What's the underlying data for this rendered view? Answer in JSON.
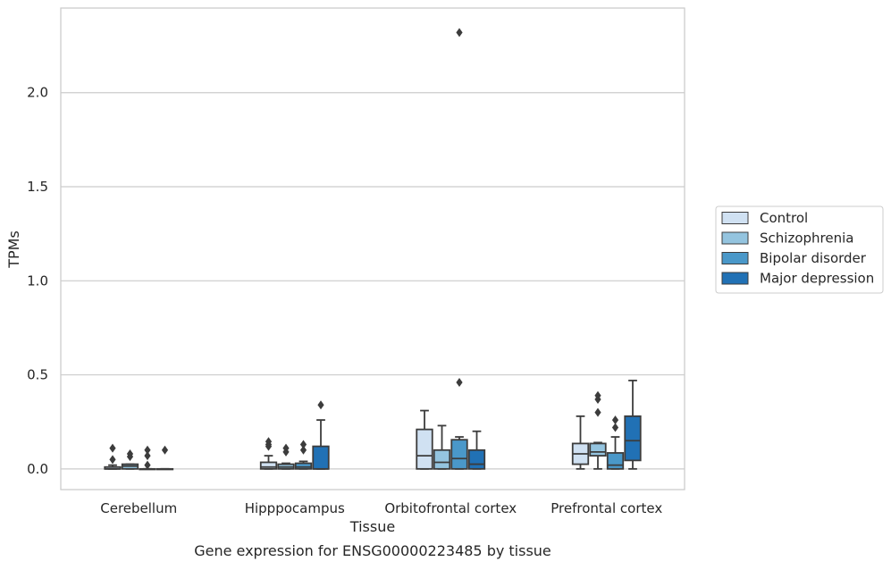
{
  "chart_data": {
    "type": "box",
    "caption": "Gene expression for ENSG00000223485 by tissue",
    "xlabel": "Tissue",
    "ylabel": "TPMs",
    "ylim": [
      -0.11,
      2.45
    ],
    "yticks": [
      0.0,
      0.5,
      1.0,
      1.5,
      2.0
    ],
    "ytick_labels": [
      "0.0",
      "0.5",
      "1.0",
      "1.5",
      "2.0"
    ],
    "grid": "horizontal",
    "legend_position": "right",
    "categories": [
      "Cerebellum",
      "Hipppocampus",
      "Orbitofrontal cortex",
      "Prefrontal cortex"
    ],
    "series": [
      {
        "name": "Control",
        "color": "#d0e1f2",
        "boxes": [
          {
            "q1": 0.0,
            "median": 0.0,
            "q3": 0.01,
            "whisker_low": 0.0,
            "whisker_high": 0.02,
            "outliers": [
              0.05,
              0.11
            ]
          },
          {
            "q1": 0.0,
            "median": 0.01,
            "q3": 0.035,
            "whisker_low": 0.0,
            "whisker_high": 0.07,
            "outliers": [
              0.12,
              0.13,
              0.145
            ]
          },
          {
            "q1": 0.0,
            "median": 0.07,
            "q3": 0.21,
            "whisker_low": 0.0,
            "whisker_high": 0.31,
            "outliers": []
          },
          {
            "q1": 0.025,
            "median": 0.08,
            "q3": 0.135,
            "whisker_low": 0.0,
            "whisker_high": 0.28,
            "outliers": []
          }
        ]
      },
      {
        "name": "Schizophrenia",
        "color": "#94c4df",
        "boxes": [
          {
            "q1": 0.0,
            "median": 0.015,
            "q3": 0.025,
            "whisker_low": 0.0,
            "whisker_high": 0.025,
            "outliers": [
              0.065,
              0.08
            ]
          },
          {
            "q1": 0.0,
            "median": 0.01,
            "q3": 0.025,
            "whisker_low": 0.0,
            "whisker_high": 0.03,
            "outliers": [
              0.09,
              0.11
            ]
          },
          {
            "q1": 0.0,
            "median": 0.035,
            "q3": 0.1,
            "whisker_low": 0.0,
            "whisker_high": 0.23,
            "outliers": []
          },
          {
            "q1": 0.07,
            "median": 0.09,
            "q3": 0.135,
            "whisker_low": 0.0,
            "whisker_high": 0.14,
            "outliers": [
              0.3,
              0.37,
              0.39
            ]
          }
        ]
      },
      {
        "name": "Bipolar disorder",
        "color": "#4a98c9",
        "boxes": [
          {
            "q1": 0.0,
            "median": 0.0,
            "q3": 0.0,
            "whisker_low": 0.0,
            "whisker_high": 0.0,
            "outliers": [
              0.02,
              0.07,
              0.1
            ]
          },
          {
            "q1": 0.0,
            "median": 0.01,
            "q3": 0.03,
            "whisker_low": 0.0,
            "whisker_high": 0.04,
            "outliers": [
              0.1,
              0.13
            ]
          },
          {
            "q1": 0.0,
            "median": 0.055,
            "q3": 0.155,
            "whisker_low": 0.0,
            "whisker_high": 0.17,
            "outliers": [
              0.46,
              2.32
            ]
          },
          {
            "q1": 0.0,
            "median": 0.02,
            "q3": 0.085,
            "whisker_low": 0.0,
            "whisker_high": 0.17,
            "outliers": [
              0.22,
              0.26
            ]
          }
        ]
      },
      {
        "name": "Major depression",
        "color": "#2171b5",
        "boxes": [
          {
            "q1": 0.0,
            "median": 0.0,
            "q3": 0.0,
            "whisker_low": 0.0,
            "whisker_high": 0.0,
            "outliers": [
              0.1
            ]
          },
          {
            "q1": 0.0,
            "median": 0.0,
            "q3": 0.12,
            "whisker_low": 0.0,
            "whisker_high": 0.26,
            "outliers": [
              0.34
            ]
          },
          {
            "q1": 0.0,
            "median": 0.025,
            "q3": 0.1,
            "whisker_low": 0.0,
            "whisker_high": 0.2,
            "outliers": []
          },
          {
            "q1": 0.045,
            "median": 0.15,
            "q3": 0.28,
            "whisker_low": 0.0,
            "whisker_high": 0.47,
            "outliers": []
          }
        ]
      }
    ]
  }
}
